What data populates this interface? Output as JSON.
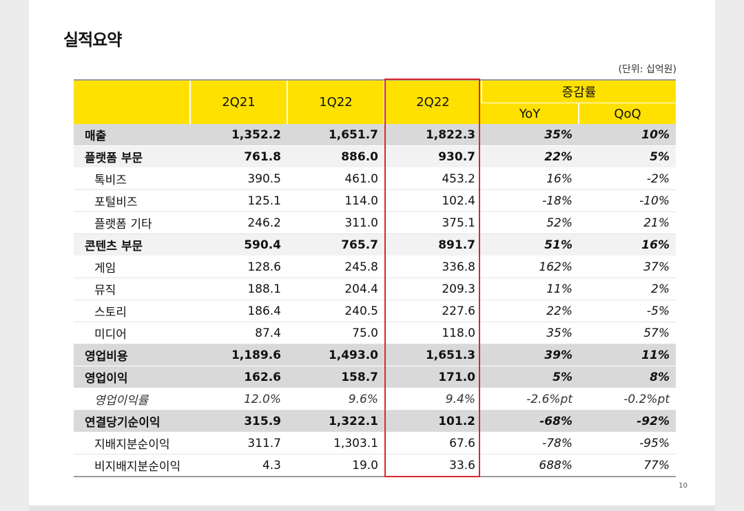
{
  "title": "실적요약",
  "unit": "(단위: 십억원)",
  "page_number": "10",
  "header": {
    "cols": [
      "2Q21",
      "1Q22",
      "2Q22"
    ],
    "change_group": "증감률",
    "yoy": "YoY",
    "qoq": "QoQ"
  },
  "rows": [
    {
      "label": "매출",
      "v": [
        "1,352.2",
        "1,651.7",
        "1,822.3"
      ],
      "yoy": "35%",
      "qoq": "10%"
    },
    {
      "label": "플랫폼 부문",
      "v": [
        "761.8",
        "886.0",
        "930.7"
      ],
      "yoy": "22%",
      "qoq": "5%"
    },
    {
      "label": "톡비즈",
      "v": [
        "390.5",
        "461.0",
        "453.2"
      ],
      "yoy": "16%",
      "qoq": "-2%"
    },
    {
      "label": "포털비즈",
      "v": [
        "125.1",
        "114.0",
        "102.4"
      ],
      "yoy": "-18%",
      "qoq": "-10%"
    },
    {
      "label": "플랫폼 기타",
      "v": [
        "246.2",
        "311.0",
        "375.1"
      ],
      "yoy": "52%",
      "qoq": "21%"
    },
    {
      "label": "콘텐츠 부문",
      "v": [
        "590.4",
        "765.7",
        "891.7"
      ],
      "yoy": "51%",
      "qoq": "16%"
    },
    {
      "label": "게임",
      "v": [
        "128.6",
        "245.8",
        "336.8"
      ],
      "yoy": "162%",
      "qoq": "37%"
    },
    {
      "label": "뮤직",
      "v": [
        "188.1",
        "204.4",
        "209.3"
      ],
      "yoy": "11%",
      "qoq": "2%"
    },
    {
      "label": "스토리",
      "v": [
        "186.4",
        "240.5",
        "227.6"
      ],
      "yoy": "22%",
      "qoq": "-5%"
    },
    {
      "label": "미디어",
      "v": [
        "87.4",
        "75.0",
        "118.0"
      ],
      "yoy": "35%",
      "qoq": "57%"
    },
    {
      "label": "영업비용",
      "v": [
        "1,189.6",
        "1,493.0",
        "1,651.3"
      ],
      "yoy": "39%",
      "qoq": "11%"
    },
    {
      "label": "영업이익",
      "v": [
        "162.6",
        "158.7",
        "171.0"
      ],
      "yoy": "5%",
      "qoq": "8%"
    },
    {
      "label": "영업이익률",
      "v": [
        "12.0%",
        "9.6%",
        "9.4%"
      ],
      "yoy": "-2.6%pt",
      "qoq": "-0.2%pt"
    },
    {
      "label": "연결당기순이익",
      "v": [
        "315.9",
        "1,322.1",
        "101.2"
      ],
      "yoy": "-68%",
      "qoq": "-92%"
    },
    {
      "label": "지배지분순이익",
      "v": [
        "311.7",
        "1,303.1",
        "67.6"
      ],
      "yoy": "-78%",
      "qoq": "-95%"
    },
    {
      "label": "비지배지분순이익",
      "v": [
        "4.3",
        "19.0",
        "33.6"
      ],
      "yoy": "688%",
      "qoq": "77%"
    }
  ],
  "colors": {
    "header_bg": "#ffe100",
    "highlight_border": "#d9262c",
    "bold_row_bg": "#d9d9d9"
  }
}
